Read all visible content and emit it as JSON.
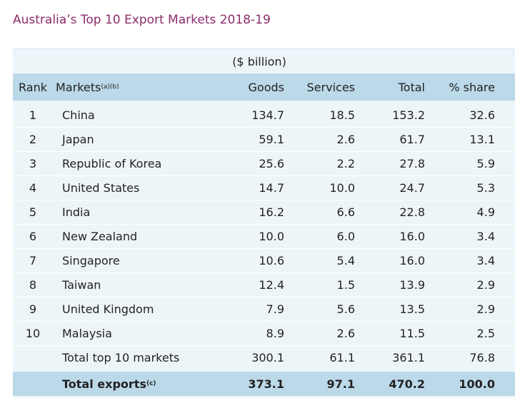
{
  "title": "Australia’s Top 10 Export Markets  2018-19",
  "unit_note": "($ billion)",
  "header": {
    "rank": "Rank",
    "markets": "Markets",
    "markets_note": "(a)(b)",
    "goods": "Goods",
    "services": "Services",
    "total": "Total",
    "share": "% share"
  },
  "rows": [
    [
      "1",
      "China",
      "134.7",
      "18.5",
      "153.2",
      "32.6"
    ],
    [
      "2",
      "Japan",
      "59.1",
      "2.6",
      "61.7",
      "13.1"
    ],
    [
      "3",
      "Republic of Korea",
      "25.6",
      "2.2",
      "27.8",
      "5.9"
    ],
    [
      "4",
      "United States",
      "14.7",
      "10.0",
      "24.7",
      "5.3"
    ],
    [
      "5",
      "India",
      "16.2",
      "6.6",
      "22.8",
      "4.9"
    ],
    [
      "6",
      "New Zealand",
      "10.0",
      "6.0",
      "16.0",
      "3.4"
    ],
    [
      "7",
      "Singapore",
      "10.6",
      "5.4",
      "16.0",
      "3.4"
    ],
    [
      "8",
      "Taiwan",
      "12.4",
      "1.5",
      "13.9",
      "2.9"
    ],
    [
      "9",
      "United Kingdom",
      "7.9",
      "5.6",
      "13.5",
      "2.9"
    ],
    [
      "10",
      "Malaysia",
      "8.9",
      "2.6",
      "11.5",
      "2.5"
    ]
  ],
  "subtotal": {
    "label": "Total top 10 markets",
    "goods": "300.1",
    "services": "61.1",
    "total": "361.1",
    "share": "76.8"
  },
  "total": {
    "label": "Total exports",
    "note": "(c)",
    "goods": "373.1",
    "services": "97.1",
    "total": "470.2",
    "share": "100.0"
  }
}
